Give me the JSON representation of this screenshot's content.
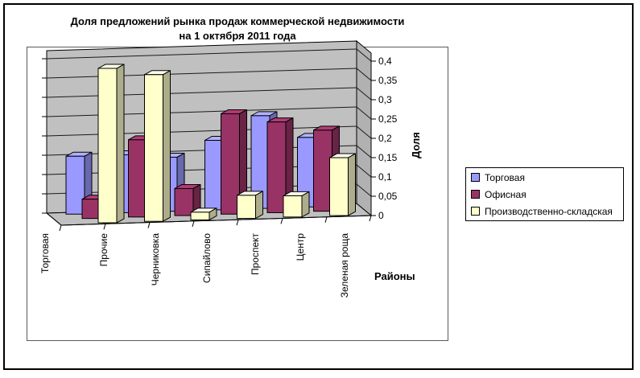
{
  "title": {
    "line1": "Доля предложений рынка продаж коммерческой недвижимости",
    "line2": "на 1 октября 2011 года"
  },
  "axes": {
    "value_axis_title": "Доля",
    "category_axis_title": "Районы"
  },
  "legend": {
    "position": "right",
    "items": [
      {
        "label": "Торговая",
        "color": "#9999FF"
      },
      {
        "label": "Офисная",
        "color": "#993366"
      },
      {
        "label": "Производственно-складская",
        "color": "#FFFFCC"
      }
    ]
  },
  "chart_data": {
    "type": "bar",
    "subtype": "3d-clustered-column",
    "title": "Доля предложений рынка продаж коммерческой недвижимости на 1 октября 2011 года",
    "xlabel": "Районы",
    "ylabel": "Доля",
    "ylim": [
      0,
      0.4
    ],
    "ytick_interval": 0.05,
    "ytick_labels": [
      "0",
      "0,05",
      "0,1",
      "0,15",
      "0,2",
      "0,25",
      "0,3",
      "0,35",
      "0,4"
    ],
    "decimal_separator": ",",
    "grid": true,
    "wall_color": "#C0C0C0",
    "legend_position": "right",
    "categories": [
      "Торговая",
      "Прочие",
      "Черниковка",
      "Сипайлово",
      "Проспект",
      "Центр",
      "Зеленая роща"
    ],
    "series": [
      {
        "name": "Торговая",
        "color": "#9999FF",
        "values": [
          0.15,
          0.15,
          0.14,
          0.18,
          0.24,
          0.18,
          null
        ]
      },
      {
        "name": "Офисная",
        "color": "#993366",
        "values": [
          0.05,
          0.2,
          0.07,
          0.26,
          0.235,
          0.21,
          null
        ]
      },
      {
        "name": "Производственно-складская",
        "color": "#FFFFCC",
        "values": [
          0.4,
          0.38,
          0.02,
          0.06,
          0.055,
          0.15,
          null
        ]
      }
    ],
    "note": "Axis shows 7 rotated category labels; 6 bar clusters are visible on the floor, rightmost cluster sits under the last labels."
  }
}
